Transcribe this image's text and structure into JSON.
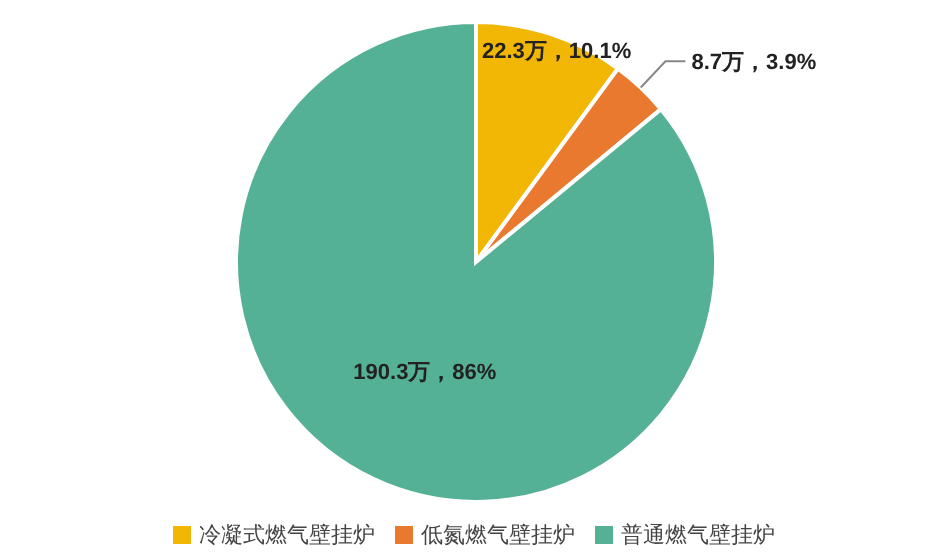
{
  "chart_data": {
    "type": "pie",
    "categories": [
      "冷凝式燃气壁挂炉",
      "低氮燃气壁挂炉",
      "普通燃气壁挂炉"
    ],
    "values": [
      22.3,
      8.7,
      190.3
    ],
    "value_labels": [
      "22.3万，10.1%",
      "8.7万，3.9%",
      "190.3万，86%"
    ],
    "colors": [
      "#f2b705",
      "#e8792f",
      "#55b195"
    ],
    "legend": "bottom"
  }
}
